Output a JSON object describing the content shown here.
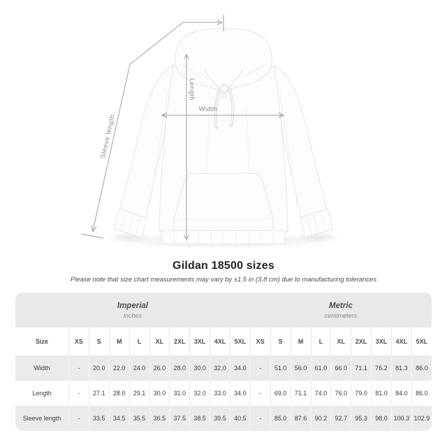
{
  "title": "Gildan 18500 sizes",
  "note": "Please note that size chart measurements may vary by ±1.5 in (3.8 cm) due to manufacturing tolerances",
  "diagram": {
    "length_label": "Length",
    "width_label": "Width",
    "sleeve_label": "Sleeve length"
  },
  "table": {
    "sections": [
      {
        "label": "Imperial",
        "sublabel": "inches"
      },
      {
        "label": "Metric",
        "sublabel": "centimeters"
      }
    ],
    "size_header": "Size",
    "sizes": [
      "XS",
      "S",
      "M",
      "L",
      "XL",
      "2XL",
      "3XL",
      "4XL",
      "5XL"
    ],
    "rows": [
      {
        "label": "Width",
        "imperial": [
          "-",
          "20.0",
          "22.0",
          "24.0",
          "26.0",
          "28.0",
          "30.0",
          "32.0",
          "34.0"
        ],
        "metric": [
          "-",
          "51.0",
          "56.0",
          "61.0",
          "66.0",
          "71.1",
          "76.2",
          "81.3",
          "86.0"
        ]
      },
      {
        "label": "Length",
        "imperial": [
          "-",
          "27.1",
          "28.0",
          "29.1",
          "30.0",
          "31.0",
          "32.0",
          "33.0",
          "34.0"
        ],
        "metric": [
          "-",
          "69.0",
          "71.1",
          "74.0",
          "76.0",
          "79.0",
          "81.0",
          "84.0",
          "86.0"
        ]
      },
      {
        "label": "Sleeve length",
        "imperial": [
          "-",
          "33.5",
          "34.5",
          "35.5",
          "36.5",
          "37.5",
          "38.5",
          "39.5",
          "40.5"
        ],
        "metric": [
          "-",
          "85.0",
          "87.6",
          "90.2",
          "92.7",
          "95.3",
          "98.0",
          "100.3",
          "102.9"
        ]
      }
    ]
  },
  "colors": {
    "band": "#e9e9e9",
    "rowalt": "#ebebeb",
    "arrow": "#9e9e9e",
    "annolabel": "#8b8b8b",
    "textdark": "#3c3c3c"
  }
}
